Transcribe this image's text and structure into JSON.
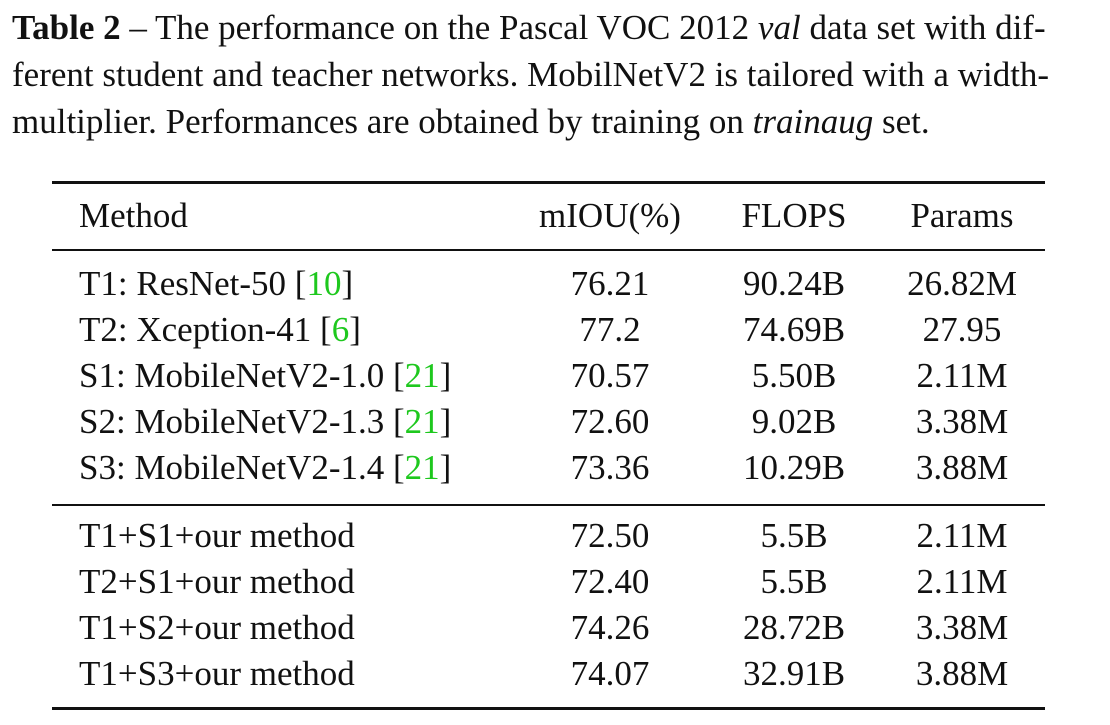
{
  "caption": {
    "label": "Table 2",
    "line1_a": " – The performance on the Pascal VOC 2012 ",
    "line1_em": "val",
    "line1_b": " data set with dif-",
    "line2": "ferent student and teacher networks. MobilNetV2 is tailored with a width-",
    "line3_a": "multiplier. Performances are obtained by training on ",
    "line3_em": "trainaug",
    "line3_b": " set."
  },
  "table": {
    "headers": {
      "method": "Method",
      "miou": "mIOU(%)",
      "flops": "FLOPS",
      "params": "Params"
    },
    "group1": [
      {
        "method": "T1: ResNet-50 [",
        "cite": "10",
        "close": "]",
        "miou": "76.21",
        "flops": "90.24B",
        "params": "26.82M"
      },
      {
        "method": "T2: Xception-41 [",
        "cite": "6",
        "close": "]",
        "miou": "77.2",
        "flops": "74.69B",
        "params": "27.95"
      },
      {
        "method": "S1: MobileNetV2-1.0 [",
        "cite": "21",
        "close": "]",
        "miou": "70.57",
        "flops": "5.50B",
        "params": "2.11M"
      },
      {
        "method": "S2: MobileNetV2-1.3 [",
        "cite": "21",
        "close": "]",
        "miou": "72.60",
        "flops": "9.02B",
        "params": "3.38M"
      },
      {
        "method": "S3: MobileNetV2-1.4 [",
        "cite": "21",
        "close": "]",
        "miou": "73.36",
        "flops": "10.29B",
        "params": "3.88M"
      }
    ],
    "group2": [
      {
        "method": "T1+S1+our method",
        "miou": "72.50",
        "flops": "5.5B",
        "params": "2.11M"
      },
      {
        "method": "T2+S1+our method",
        "miou": "72.40",
        "flops": "5.5B",
        "params": "2.11M"
      },
      {
        "method": "T1+S2+our method",
        "miou": "74.26",
        "flops": "28.72B",
        "params": "3.38M"
      },
      {
        "method": "T1+S3+our method",
        "miou": "74.07",
        "flops": "32.91B",
        "params": "3.88M"
      }
    ],
    "citation_color": "#1ec81e"
  }
}
